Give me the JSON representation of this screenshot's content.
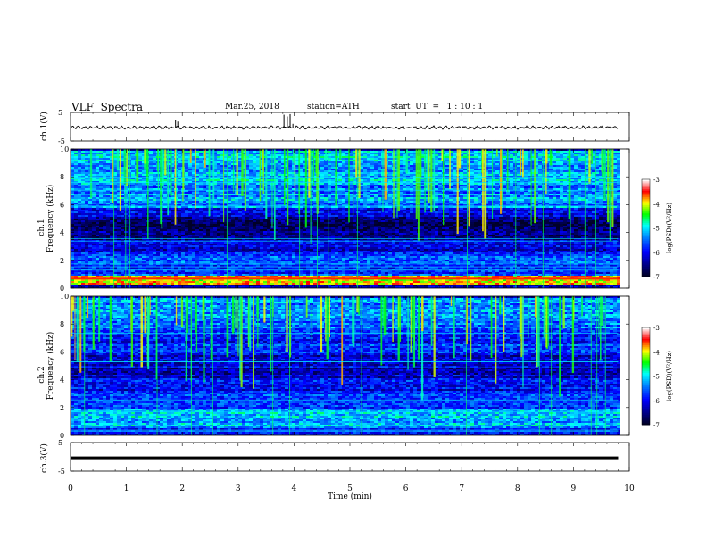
{
  "header": {
    "title": "VLF  Spectra",
    "date": "Mar.25, 2018",
    "station": "station=ATH",
    "start_ut": "start  UT  =   1 : 10 : 1"
  },
  "colorbar": {
    "label": "log(PSD)(V²/Hz)",
    "ticks": [
      "-3",
      "-4",
      "-5",
      "-6",
      "-7"
    ],
    "colors": [
      "#ffffff",
      "#ff0000",
      "#ffff00",
      "#00ff00",
      "#00ffff",
      "#0000ff",
      "#000044"
    ]
  },
  "chart_data": [
    {
      "type": "line",
      "name": "ch1-waveform",
      "ylabel": "ch.1(V)",
      "ylim": [
        -5,
        5
      ],
      "y_ticks": [
        "5",
        "-5"
      ],
      "baseline": -0.3,
      "spikes": [
        {
          "x": 1.88,
          "y": 2.2
        },
        {
          "x": 1.92,
          "y": 1.8
        },
        {
          "x": 3.82,
          "y": 4.2
        },
        {
          "x": 3.88,
          "y": 3.6
        },
        {
          "x": 3.93,
          "y": 4.4
        },
        {
          "x": 3.98,
          "y": 1.0
        }
      ]
    },
    {
      "type": "heatmap",
      "name": "ch1-spectrogram",
      "ylabel": "ch.1",
      "ylabel2": "Frequency  (kHz)",
      "ylim": [
        0,
        10
      ],
      "y_ticks": [
        "0",
        "2",
        "4",
        "6",
        "8",
        "10"
      ],
      "x_end": 9.8,
      "bands": [
        {
          "from": 0.0,
          "to": 0.3,
          "level": 0.15
        },
        {
          "from": 0.3,
          "to": 0.9,
          "level": 0.8
        },
        {
          "from": 0.9,
          "to": 2.6,
          "level": 0.32
        },
        {
          "from": 2.6,
          "to": 3.5,
          "level": 0.22
        },
        {
          "from": 3.5,
          "to": 5.2,
          "level": 0.1
        },
        {
          "from": 5.2,
          "to": 5.8,
          "level": 0.22
        },
        {
          "from": 5.8,
          "to": 7.5,
          "level": 0.4
        },
        {
          "from": 7.5,
          "to": 10.0,
          "level": 0.45
        }
      ]
    },
    {
      "type": "heatmap",
      "name": "ch2-spectrogram",
      "ylabel": "ch.2",
      "ylabel2": "Frequency  (kHz)",
      "ylim": [
        0,
        10
      ],
      "y_ticks": [
        "0",
        "2",
        "4",
        "6",
        "8",
        "10"
      ],
      "x_end": 9.8,
      "bands": [
        {
          "from": 0.0,
          "to": 0.6,
          "level": 0.25
        },
        {
          "from": 0.6,
          "to": 2.0,
          "level": 0.45
        },
        {
          "from": 2.0,
          "to": 3.0,
          "level": 0.3
        },
        {
          "from": 3.0,
          "to": 4.2,
          "level": 0.25
        },
        {
          "from": 4.2,
          "to": 6.0,
          "level": 0.18
        },
        {
          "from": 6.0,
          "to": 7.8,
          "level": 0.28
        },
        {
          "from": 7.8,
          "to": 10.0,
          "level": 0.4
        }
      ]
    },
    {
      "type": "line",
      "name": "ch3-waveform",
      "ylabel": "ch.3(V)",
      "ylim": [
        -5,
        5
      ],
      "y_ticks": [
        "5",
        "-5"
      ],
      "baseline": -0.5,
      "x_end": 9.8
    }
  ],
  "x_axis": {
    "label": "Time  (min)",
    "xlim": [
      0,
      10
    ],
    "ticks": [
      "0",
      "1",
      "2",
      "3",
      "4",
      "5",
      "6",
      "7",
      "8",
      "9",
      "10"
    ]
  }
}
